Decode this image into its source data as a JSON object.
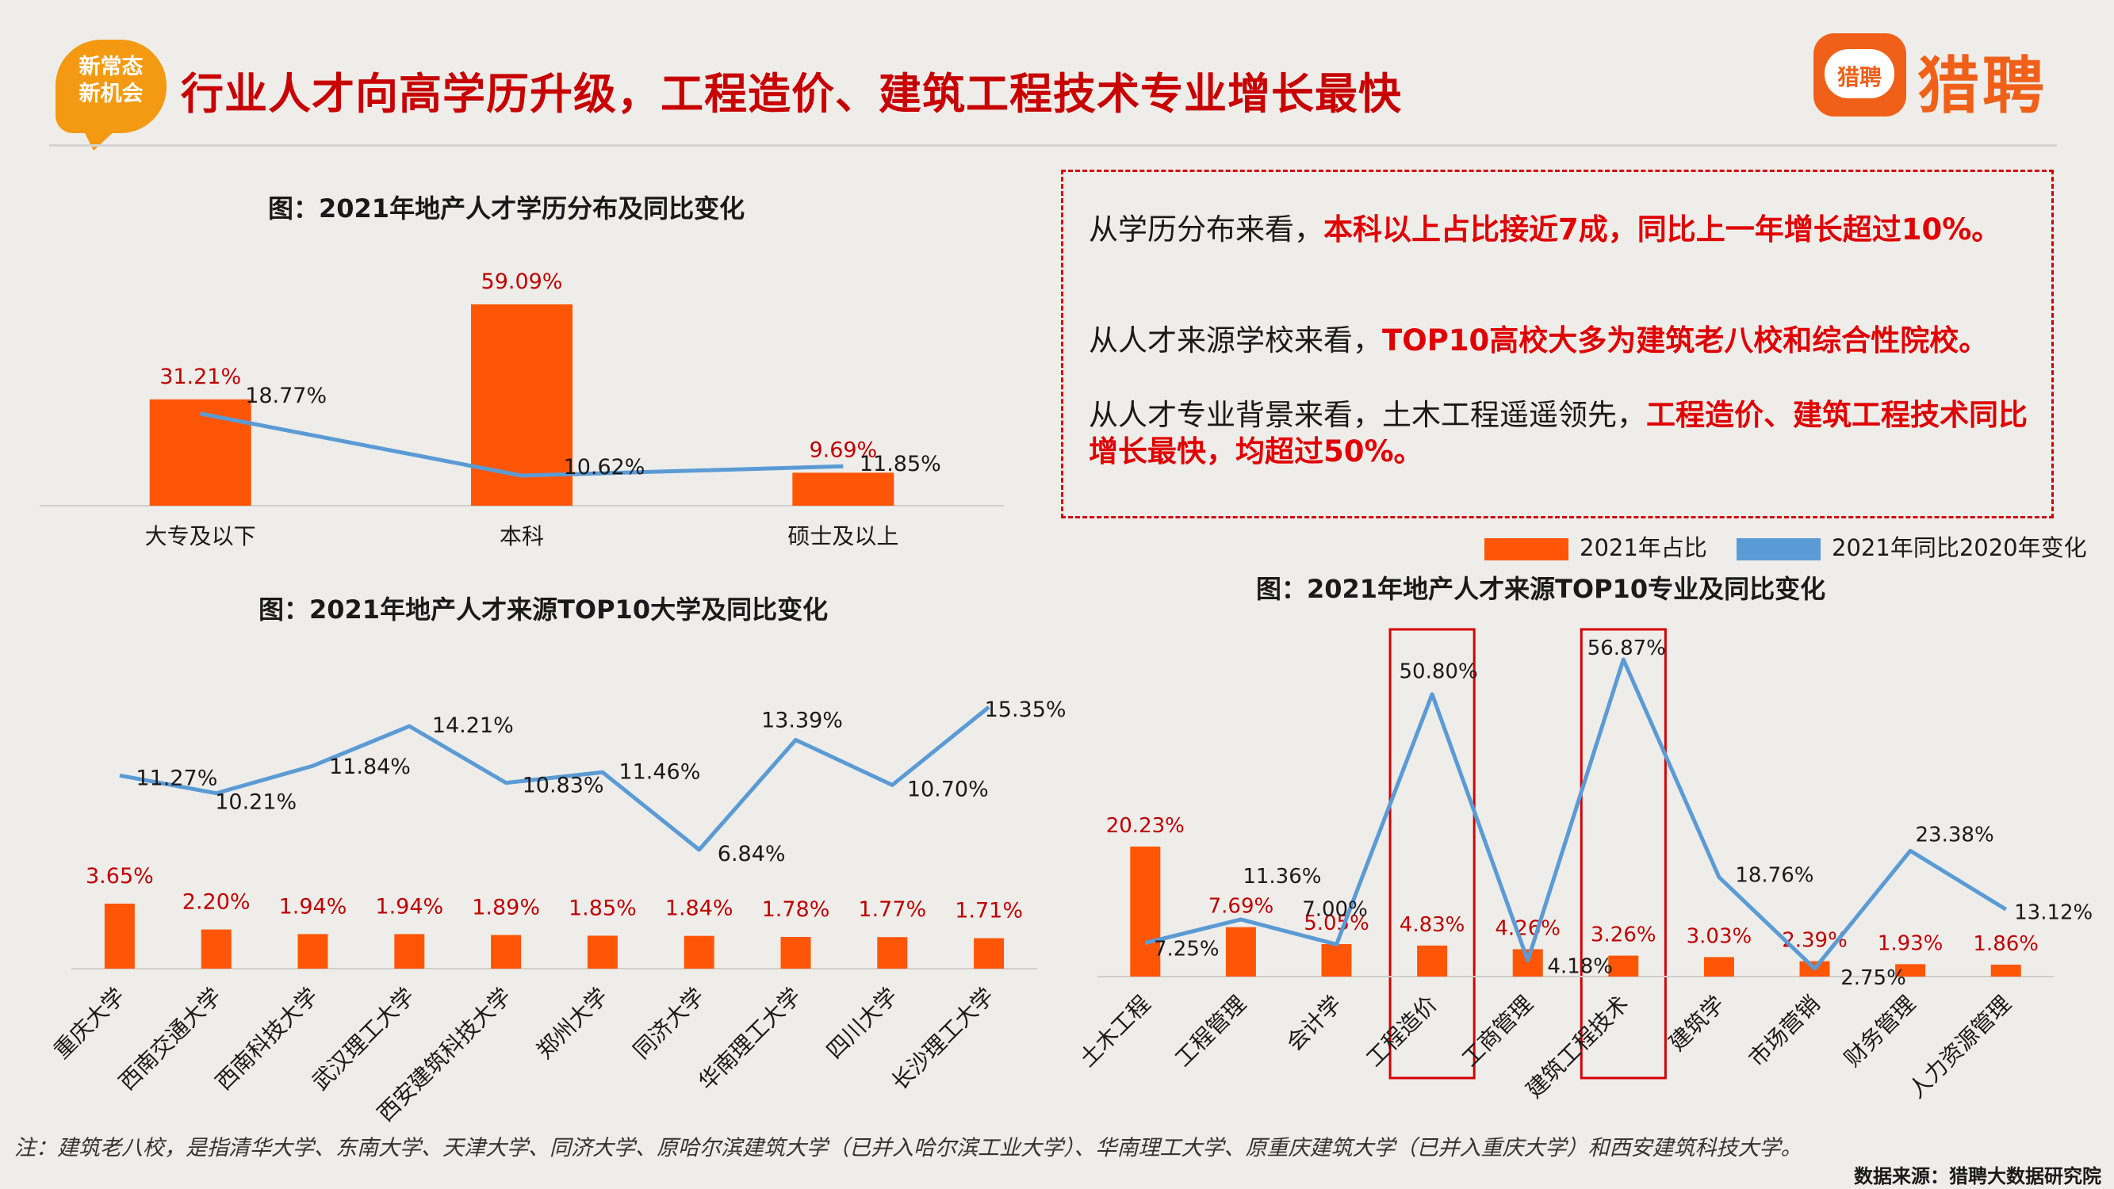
{
  "header": {
    "badge_line1": "新常态",
    "badge_line2": "新机会",
    "title": "行业人才向高学历升级，工程造价、建筑工程技术专业增长最快",
    "logo_icon_text": "猎聘",
    "logo_text": "猎聘"
  },
  "colors": {
    "bar": "#fe5606",
    "line": "#5b9bd5",
    "bar_label": "#c00000",
    "highlight": "#e00000"
  },
  "summary": {
    "p1_prefix": "从学历分布来看，",
    "p1_highlight": "本科以上占比接近7成，同比上一年增长超过10%。",
    "p2_prefix": "从人才来源学校来看，",
    "p2_highlight": "TOP10高校大多为建筑老八校和综合性院校。",
    "p3_prefix": "从人才专业背景来看，土木工程遥遥领先，",
    "p3_highlight": "工程造价、建筑工程技术同比增长最快，均超过50%。"
  },
  "legend": {
    "bar_label": "2021年占比",
    "line_label": "2021年同比2020年变化"
  },
  "chart_data": [
    {
      "type": "bar",
      "title": "图：2021年地产人才学历分布及同比变化",
      "categories": [
        "大专及以下",
        "本科",
        "硕士及以上"
      ],
      "series": [
        {
          "name": "2021年占比",
          "type": "bar",
          "values": [
            31.21,
            59.09,
            9.69
          ],
          "labels": [
            "31.21%",
            "59.09%",
            "9.69%"
          ]
        },
        {
          "name": "2021年同比2020年变化",
          "type": "line",
          "values": [
            18.77,
            10.62,
            11.85
          ],
          "labels": [
            "18.77%",
            "10.62%",
            "11.85%"
          ]
        }
      ]
    },
    {
      "type": "bar",
      "title": "图：2021年地产人才来源TOP10大学及同比变化",
      "categories": [
        "重庆大学",
        "西南交通大学",
        "西南科技大学",
        "武汉理工大学",
        "西安建筑科技大学",
        "郑州大学",
        "同济大学",
        "华南理工大学",
        "四川大学",
        "长沙理工大学"
      ],
      "series": [
        {
          "name": "2021年占比",
          "type": "bar",
          "values": [
            3.65,
            2.2,
            1.94,
            1.94,
            1.89,
            1.85,
            1.84,
            1.78,
            1.77,
            1.71
          ],
          "labels": [
            "3.65%",
            "2.20%",
            "1.94%",
            "1.94%",
            "1.89%",
            "1.85%",
            "1.84%",
            "1.78%",
            "1.77%",
            "1.71%"
          ]
        },
        {
          "name": "2021年同比2020年变化",
          "type": "line",
          "values": [
            11.27,
            10.21,
            11.84,
            14.21,
            10.83,
            11.46,
            6.84,
            13.39,
            10.7,
            15.35
          ],
          "labels": [
            "11.27%",
            "10.21%",
            "11.84%",
            "14.21%",
            "10.83%",
            "11.46%",
            "6.84%",
            "13.39%",
            "10.70%",
            "15.35%"
          ]
        }
      ]
    },
    {
      "type": "bar",
      "title": "图：2021年地产人才来源TOP10专业及同比变化",
      "categories": [
        "土木工程",
        "工程管理",
        "会计学",
        "工程造价",
        "工商管理",
        "建筑工程技术",
        "建筑学",
        "市场营销",
        "财务管理",
        "人力资源管理"
      ],
      "highlighted_categories": [
        "工程造价",
        "建筑工程技术"
      ],
      "series": [
        {
          "name": "2021年占比",
          "type": "bar",
          "values": [
            20.23,
            7.69,
            5.05,
            4.83,
            4.26,
            3.26,
            3.03,
            2.39,
            1.93,
            1.86
          ],
          "labels": [
            "20.23%",
            "7.69%",
            "5.05%",
            "4.83%",
            "4.26%",
            "3.26%",
            "3.03%",
            "2.39%",
            "1.93%",
            "1.86%"
          ]
        },
        {
          "name": "2021年同比2020年变化",
          "type": "line",
          "values": [
            7.25,
            11.36,
            7.0,
            50.8,
            4.18,
            56.87,
            18.76,
            2.75,
            23.38,
            13.12
          ],
          "labels": [
            "7.25%",
            "11.36%",
            "7.00%",
            "50.80%",
            "4.18%",
            "56.87%",
            "18.76%",
            "2.75%",
            "23.38%",
            "13.12%"
          ]
        }
      ]
    }
  ],
  "footnote": "注：建筑老八校，是指清华大学、东南大学、天津大学、同济大学、原哈尔滨建筑大学（已并入哈尔滨工业大学）、华南理工大学、原重庆建筑大学（已并入重庆大学）和西安建筑科技大学。",
  "source": "数据来源：猎聘大数据研究院"
}
